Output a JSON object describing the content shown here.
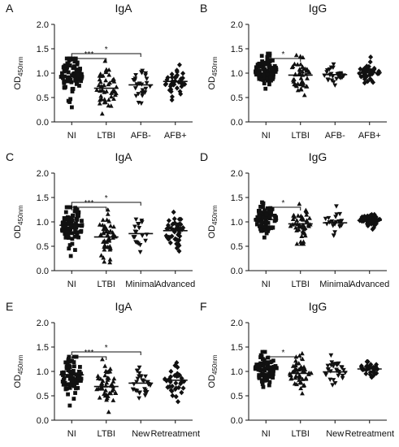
{
  "figure": {
    "panel_letters": [
      "A",
      "B",
      "C",
      "D",
      "E",
      "F"
    ],
    "ylabel_main": "OD",
    "ylabel_sub": "450nm"
  },
  "chart_data": [
    {
      "panel": "A",
      "type": "scatter",
      "title": "IgA",
      "ylabel": "OD450nm",
      "ylim": [
        0,
        2.0
      ],
      "yticks": [
        0.0,
        0.5,
        1.0,
        1.5,
        2.0
      ],
      "categories": [
        "NI",
        "LTBI",
        "AFB-",
        "AFB+"
      ],
      "markers": [
        "square",
        "triangle-up",
        "triangle-down",
        "diamond"
      ],
      "groups": [
        {
          "label": "NI",
          "n": 84,
          "mean": 0.93,
          "min": 0.3,
          "max": 1.3
        },
        {
          "label": "LTBI",
          "n": 48,
          "mean": 0.69,
          "min": 0.17,
          "max": 1.25
        },
        {
          "label": "AFB-",
          "n": 27,
          "mean": 0.76,
          "min": 0.38,
          "max": 1.05
        },
        {
          "label": "AFB+",
          "n": 38,
          "mean": 0.83,
          "min": 0.45,
          "max": 1.17
        }
      ],
      "significance": [
        {
          "from": "NI",
          "to": "LTBI",
          "label": "***",
          "y": 1.3
        },
        {
          "from": "NI",
          "to": "AFB-",
          "label": "*",
          "y": 1.4
        }
      ]
    },
    {
      "panel": "B",
      "type": "scatter",
      "title": "IgG",
      "ylabel": "OD450nm",
      "ylim": [
        0,
        2.0
      ],
      "yticks": [
        0.0,
        0.5,
        1.0,
        1.5,
        2.0
      ],
      "categories": [
        "NI",
        "LTBI",
        "AFB-",
        "AFB+"
      ],
      "markers": [
        "square",
        "triangle-up",
        "triangle-down",
        "diamond"
      ],
      "groups": [
        {
          "label": "NI",
          "n": 84,
          "mean": 1.05,
          "min": 0.68,
          "max": 1.4
        },
        {
          "label": "LTBI",
          "n": 48,
          "mean": 0.96,
          "min": 0.55,
          "max": 1.37
        },
        {
          "label": "AFB-",
          "n": 27,
          "mean": 0.97,
          "min": 0.75,
          "max": 1.18
        },
        {
          "label": "AFB+",
          "n": 38,
          "mean": 1.01,
          "min": 0.8,
          "max": 1.33
        }
      ],
      "significance": [
        {
          "from": "NI",
          "to": "LTBI",
          "label": "*",
          "y": 1.3
        }
      ]
    },
    {
      "panel": "C",
      "type": "scatter",
      "title": "IgA",
      "ylabel": "OD450nm",
      "ylim": [
        0,
        2.0
      ],
      "yticks": [
        0.0,
        0.5,
        1.0,
        1.5,
        2.0
      ],
      "categories": [
        "NI",
        "LTBI",
        "Minimal",
        "Advanced"
      ],
      "markers": [
        "square",
        "triangle-up",
        "triangle-down",
        "diamond"
      ],
      "groups": [
        {
          "label": "NI",
          "n": 84,
          "mean": 0.93,
          "min": 0.3,
          "max": 1.3
        },
        {
          "label": "LTBI",
          "n": 48,
          "mean": 0.69,
          "min": 0.17,
          "max": 1.25
        },
        {
          "label": "Minimal",
          "n": 20,
          "mean": 0.76,
          "min": 0.38,
          "max": 1.05
        },
        {
          "label": "Advanced",
          "n": 46,
          "mean": 0.82,
          "min": 0.4,
          "max": 1.2
        }
      ],
      "significance": [
        {
          "from": "NI",
          "to": "LTBI",
          "label": "***",
          "y": 1.3
        },
        {
          "from": "NI",
          "to": "Minimal",
          "label": "*",
          "y": 1.4
        }
      ]
    },
    {
      "panel": "D",
      "type": "scatter",
      "title": "IgG",
      "ylabel": "OD450nm",
      "ylim": [
        0,
        2.0
      ],
      "yticks": [
        0.0,
        0.5,
        1.0,
        1.5,
        2.0
      ],
      "categories": [
        "NI",
        "LTBI",
        "Minimal",
        "Advanced"
      ],
      "markers": [
        "square",
        "triangle-up",
        "triangle-down",
        "diamond"
      ],
      "groups": [
        {
          "label": "NI",
          "n": 84,
          "mean": 1.05,
          "min": 0.68,
          "max": 1.4
        },
        {
          "label": "LTBI",
          "n": 48,
          "mean": 0.96,
          "min": 0.55,
          "max": 1.37
        },
        {
          "label": "Minimal",
          "n": 22,
          "mean": 0.98,
          "min": 0.72,
          "max": 1.32
        },
        {
          "label": "Advanced",
          "n": 60,
          "mean": 1.03,
          "min": 0.85,
          "max": 1.15
        }
      ],
      "significance": [
        {
          "from": "NI",
          "to": "LTBI",
          "label": "*",
          "y": 1.3
        }
      ]
    },
    {
      "panel": "E",
      "type": "scatter",
      "title": "IgA",
      "ylabel": "OD450nm",
      "ylim": [
        0,
        2.0
      ],
      "yticks": [
        0.0,
        0.5,
        1.0,
        1.5,
        2.0
      ],
      "categories": [
        "NI",
        "LTBI",
        "New",
        "Retreatment"
      ],
      "markers": [
        "square",
        "triangle-up",
        "triangle-down",
        "diamond"
      ],
      "groups": [
        {
          "label": "NI",
          "n": 84,
          "mean": 0.93,
          "min": 0.3,
          "max": 1.3
        },
        {
          "label": "LTBI",
          "n": 48,
          "mean": 0.69,
          "min": 0.17,
          "max": 1.25
        },
        {
          "label": "New",
          "n": 30,
          "mean": 0.76,
          "min": 0.45,
          "max": 1.08
        },
        {
          "label": "Retreatment",
          "n": 35,
          "mean": 0.82,
          "min": 0.38,
          "max": 1.18
        }
      ],
      "significance": [
        {
          "from": "NI",
          "to": "LTBI",
          "label": "***",
          "y": 1.3
        },
        {
          "from": "NI",
          "to": "New",
          "label": "*",
          "y": 1.4
        }
      ]
    },
    {
      "panel": "F",
      "type": "scatter",
      "title": "IgG",
      "ylabel": "OD450nm",
      "ylim": [
        0,
        2.0
      ],
      "yticks": [
        0.0,
        0.5,
        1.0,
        1.5,
        2.0
      ],
      "categories": [
        "NI",
        "LTBI",
        "New",
        "Retreatment"
      ],
      "markers": [
        "square",
        "triangle-up",
        "triangle-down",
        "diamond"
      ],
      "groups": [
        {
          "label": "NI",
          "n": 84,
          "mean": 1.05,
          "min": 0.68,
          "max": 1.4
        },
        {
          "label": "LTBI",
          "n": 48,
          "mean": 0.96,
          "min": 0.55,
          "max": 1.37
        },
        {
          "label": "New",
          "n": 30,
          "mean": 0.99,
          "min": 0.72,
          "max": 1.33
        },
        {
          "label": "Retreatment",
          "n": 33,
          "mean": 1.05,
          "min": 0.88,
          "max": 1.2
        }
      ],
      "significance": [
        {
          "from": "NI",
          "to": "LTBI",
          "label": "*",
          "y": 1.3
        }
      ]
    }
  ]
}
